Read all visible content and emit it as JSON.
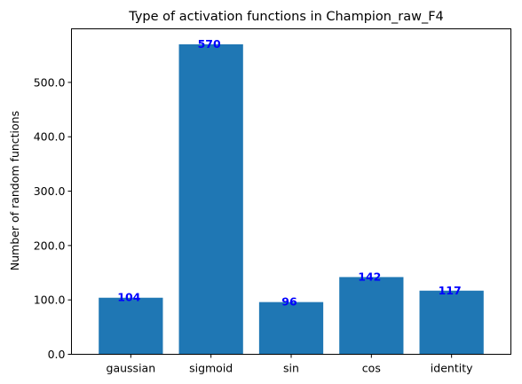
{
  "chart_data": {
    "type": "bar",
    "title": "Type of activation functions in Champion_raw_F4",
    "xlabel": "",
    "ylabel": "Number of random functions",
    "categories": [
      "gaussian",
      "sigmoid",
      "sin",
      "cos",
      "identity"
    ],
    "values": [
      104,
      570,
      96,
      142,
      117
    ],
    "data_labels": [
      "104",
      "570",
      "96",
      "142",
      "117"
    ],
    "ylim": [
      0,
      598.5
    ],
    "yticks": [
      0,
      100,
      200,
      300,
      400,
      500
    ],
    "ytick_labels": [
      "0.0",
      "100.0",
      "200.0",
      "300.0",
      "400.0",
      "500.0"
    ],
    "grid": false,
    "colors": {
      "bar": "#1f77b4",
      "data_label": "#0000ff",
      "axis": "#000000"
    }
  }
}
